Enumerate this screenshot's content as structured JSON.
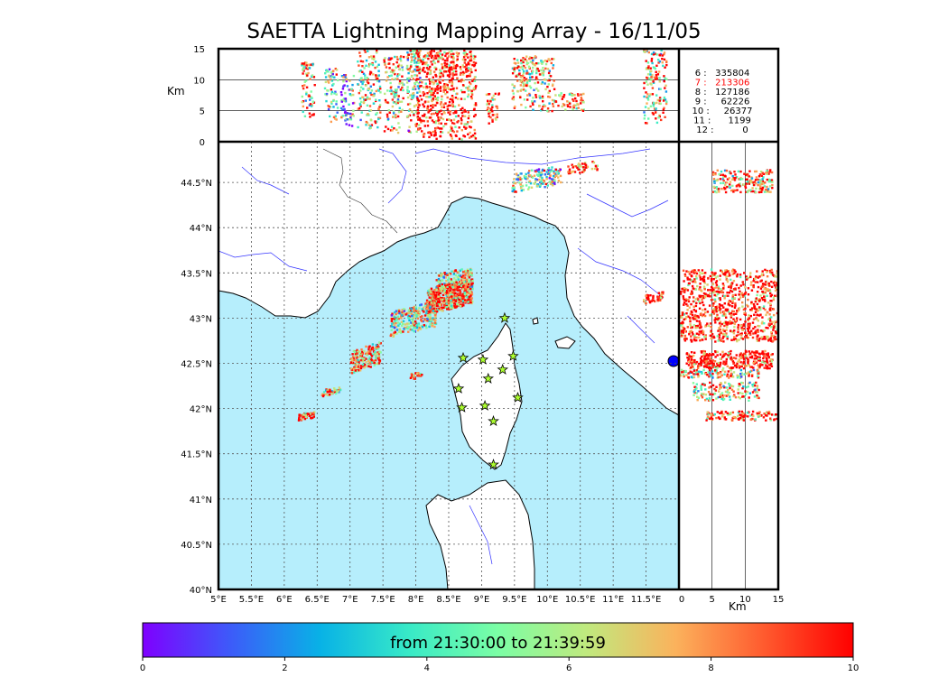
{
  "title": "SAETTA Lightning Mapping Array - 16/11/05",
  "units": "Km",
  "colorbar": {
    "caption": "from 21:30:00 to 21:39:59",
    "ticks": [
      "0",
      "2",
      "4",
      "6",
      "8",
      "10"
    ],
    "colors": [
      "#7f00ff",
      "#3c5cf9",
      "#08b2e6",
      "#38eac7",
      "#7bfea5",
      "#c0e97e",
      "#fbb25c",
      "#ff5a2e",
      "#ff0000"
    ]
  },
  "legend": [
    {
      "label": "6 :   335804",
      "color": "#000000"
    },
    {
      "label": "7 :   213306",
      "color": "#ff0000"
    },
    {
      "label": "8 :   127186",
      "color": "#000000"
    },
    {
      "label": "9 :     62226",
      "color": "#000000"
    },
    {
      "label": "10 :     26377",
      "color": "#000000"
    },
    {
      "label": "11 :      1199",
      "color": "#000000"
    },
    {
      "label": "12 :          0",
      "color": "#000000"
    }
  ],
  "colors": {
    "sea": "#b6eefc",
    "land": "#ffffff",
    "coast": "#000000",
    "rivers": "#3333ff",
    "grid": "#555555",
    "default_source": "#ff4f24"
  },
  "chart_data": [
    {
      "type": "scatter",
      "name": "map (plan view)",
      "x_ticks": [
        "5°E",
        "5.5°E",
        "6°E",
        "6.5°E",
        "7°E",
        "7.5°E",
        "8°E",
        "8.5°E",
        "9°E",
        "9.5°E",
        "10°E",
        "10.5°E",
        "11°E",
        "11.5°E"
      ],
      "y_ticks": [
        "40°N",
        "40.5°N",
        "41°N",
        "41.5°N",
        "42°N",
        "42.5°N",
        "43°N",
        "43.5°N",
        "44°N",
        "44.5°N"
      ],
      "xlim": [
        5,
        12
      ],
      "ylim": [
        40,
        44.95
      ],
      "grid": true,
      "stations": [
        {
          "lon": 9.35,
          "lat": 43.0
        },
        {
          "lon": 8.72,
          "lat": 42.56
        },
        {
          "lon": 9.02,
          "lat": 42.54
        },
        {
          "lon": 9.48,
          "lat": 42.58
        },
        {
          "lon": 9.32,
          "lat": 42.43
        },
        {
          "lon": 9.1,
          "lat": 42.33
        },
        {
          "lon": 8.65,
          "lat": 42.22
        },
        {
          "lon": 9.55,
          "lat": 42.12
        },
        {
          "lon": 8.7,
          "lat": 42.01
        },
        {
          "lon": 9.05,
          "lat": 42.03
        },
        {
          "lon": 9.18,
          "lat": 41.86
        },
        {
          "lon": 9.18,
          "lat": 41.38
        }
      ],
      "clusters": [
        {
          "lon": [
            8.15,
            8.85
          ],
          "lat": [
            43.05,
            43.45
          ],
          "n": 520,
          "hot": 0.75
        },
        {
          "lon": [
            7.6,
            8.3
          ],
          "lat": [
            42.8,
            43.2
          ],
          "n": 260,
          "hot": 0.45
        },
        {
          "lon": [
            8.3,
            8.85
          ],
          "lat": [
            43.3,
            43.58
          ],
          "n": 140,
          "hot": 0.55
        },
        {
          "lon": [
            7.0,
            7.45
          ],
          "lat": [
            42.4,
            42.75
          ],
          "n": 180,
          "hot": 0.7
        },
        {
          "lon": [
            6.55,
            6.85
          ],
          "lat": [
            42.14,
            42.25
          ],
          "n": 40,
          "hot": 0.6
        },
        {
          "lon": [
            6.2,
            6.45
          ],
          "lat": [
            41.88,
            41.98
          ],
          "n": 40,
          "hot": 0.8
        },
        {
          "lon": [
            7.9,
            8.08
          ],
          "lat": [
            42.33,
            42.42
          ],
          "n": 25,
          "hot": 0.9
        },
        {
          "lon": [
            9.45,
            10.2
          ],
          "lat": [
            44.4,
            44.7
          ],
          "n": 160,
          "hot": 0.35
        },
        {
          "lon": [
            10.3,
            10.75
          ],
          "lat": [
            44.6,
            44.75
          ],
          "n": 50,
          "hot": 0.85
        },
        {
          "lon": [
            11.45,
            11.75
          ],
          "lat": [
            43.17,
            43.3
          ],
          "n": 50,
          "hot": 0.85
        },
        {
          "lon": [
            8.7,
            8.85
          ],
          "lat": [
            43.3,
            43.4
          ],
          "n": 15,
          "hot": 0.6
        }
      ]
    },
    {
      "type": "scatter",
      "name": "lon-altitude",
      "y_ticks": [
        "0",
        "5",
        "10",
        "15"
      ],
      "ylim": [
        0,
        15
      ],
      "ylabel": "Km",
      "columns": [
        {
          "lon": [
            6.25,
            6.45
          ],
          "alt": [
            4,
            13
          ],
          "n": 70,
          "hot": 0.6
        },
        {
          "lon": [
            6.6,
            6.8
          ],
          "alt": [
            3,
            12
          ],
          "n": 60,
          "hot": 0.4
        },
        {
          "lon": [
            6.85,
            7.05
          ],
          "alt": [
            2.5,
            11
          ],
          "n": 70,
          "hot": 0.2
        },
        {
          "lon": [
            7.1,
            7.45
          ],
          "alt": [
            2,
            15
          ],
          "n": 150,
          "hot": 0.5
        },
        {
          "lon": [
            7.5,
            7.8
          ],
          "alt": [
            1.5,
            14
          ],
          "n": 130,
          "hot": 0.55
        },
        {
          "lon": [
            7.85,
            8.05
          ],
          "alt": [
            1.5,
            15
          ],
          "n": 130,
          "hot": 0.45
        },
        {
          "lon": [
            8.0,
            8.9
          ],
          "alt": [
            0.5,
            15
          ],
          "n": 600,
          "hot": 0.85
        },
        {
          "lon": [
            9.05,
            9.25
          ],
          "alt": [
            3,
            8
          ],
          "n": 40,
          "hot": 0.7
        },
        {
          "lon": [
            9.45,
            10.1
          ],
          "alt": [
            5,
            14
          ],
          "n": 220,
          "hot": 0.6
        },
        {
          "lon": [
            10.1,
            10.55
          ],
          "alt": [
            5,
            8
          ],
          "n": 60,
          "hot": 0.7
        },
        {
          "lon": [
            11.45,
            11.8
          ],
          "alt": [
            3,
            15
          ],
          "n": 140,
          "hot": 0.55
        }
      ]
    },
    {
      "type": "scatter",
      "name": "altitude-lat",
      "x_ticks": [
        "0",
        "5",
        "10",
        "15"
      ],
      "xlim": [
        0,
        15
      ],
      "xlabel": "Km",
      "bands": [
        {
          "alt": [
            5,
            14
          ],
          "lat": [
            44.4,
            44.65
          ],
          "n": 200,
          "hot": 0.6
        },
        {
          "alt": [
            0,
            15
          ],
          "lat": [
            42.75,
            43.55
          ],
          "n": 900,
          "hot": 0.85
        },
        {
          "alt": [
            1,
            14
          ],
          "lat": [
            42.45,
            42.65
          ],
          "n": 320,
          "hot": 0.9
        },
        {
          "alt": [
            0,
            12
          ],
          "lat": [
            42.35,
            42.44
          ],
          "n": 120,
          "hot": 0.5
        },
        {
          "alt": [
            2,
            12
          ],
          "lat": [
            42.1,
            42.3
          ],
          "n": 140,
          "hot": 0.6
        },
        {
          "alt": [
            4,
            15
          ],
          "lat": [
            41.88,
            41.98
          ],
          "n": 120,
          "hot": 0.8
        }
      ]
    }
  ]
}
